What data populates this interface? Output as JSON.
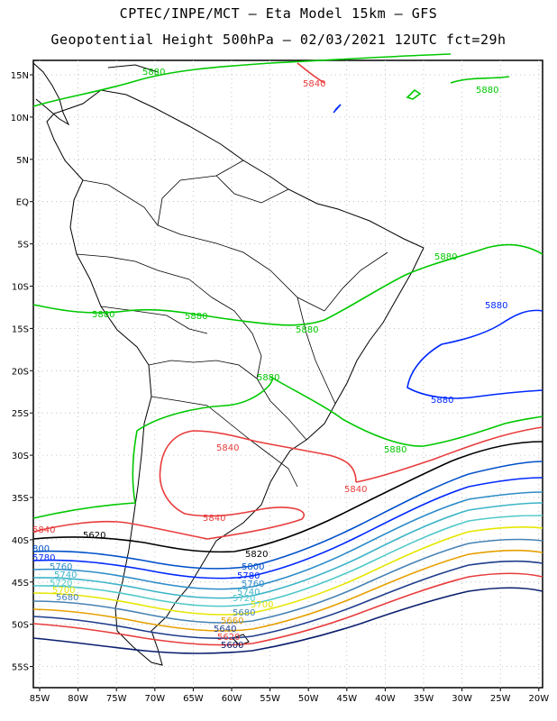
{
  "header": {
    "line1": "CPTEC/INPE/MCT –  Eta Model 15km – GFS",
    "line2": "Geopotential Height 500hPa – 02/03/2021 12UTC fct=29h"
  },
  "axes": {
    "lat_labels": [
      "15N",
      "10N",
      "5N",
      "EQ",
      "5S",
      "10S",
      "15S",
      "20S",
      "25S",
      "30S",
      "35S",
      "40S",
      "45S",
      "50S",
      "55S"
    ],
    "lon_labels": [
      "85W",
      "80W",
      "75W",
      "70W",
      "65W",
      "60W",
      "55W",
      "50W",
      "45W",
      "40W",
      "35W",
      "30W",
      "25W",
      "20W"
    ]
  },
  "contour_labels": [
    {
      "text": "5880",
      "color": "#00c800"
    },
    {
      "text": "5840",
      "color": "#e83c3c"
    },
    {
      "text": "5880",
      "color": "#00c800"
    },
    {
      "text": "5880",
      "color": "#00c800"
    },
    {
      "text": "5880",
      "color": "#00c800"
    },
    {
      "text": "5880",
      "color": "#00c800"
    },
    {
      "text": "5880",
      "color": "#00c800"
    },
    {
      "text": "5880",
      "color": "#0028ff"
    },
    {
      "text": "5880",
      "color": "#0028ff"
    },
    {
      "text": "5880",
      "color": "#00c800"
    },
    {
      "text": "5880",
      "color": "#00c800"
    },
    {
      "text": "5840",
      "color": "#e83c3c"
    },
    {
      "text": "5840",
      "color": "#e83c3c"
    },
    {
      "text": "5840",
      "color": "#e83c3c"
    },
    {
      "text": "5840",
      "color": "#e83c3c"
    },
    {
      "text": "5620",
      "color": "#000000"
    },
    {
      "text": "5820",
      "color": "#000000"
    },
    {
      "text": "800",
      "color": "#0050c8"
    },
    {
      "text": "5780",
      "color": "#0028ff"
    },
    {
      "text": "5760",
      "color": "#2d8cc8"
    },
    {
      "text": "5740",
      "color": "#3cb4c8"
    },
    {
      "text": "5720",
      "color": "#50c8c8"
    },
    {
      "text": "5700",
      "color": "#e6e600"
    },
    {
      "text": "5680",
      "color": "#4682b4"
    },
    {
      "text": "5800",
      "color": "#0050c8"
    },
    {
      "text": "5780",
      "color": "#0028ff"
    },
    {
      "text": "5760",
      "color": "#2d8cc8"
    },
    {
      "text": "5740",
      "color": "#3cb4c8"
    },
    {
      "text": "5720",
      "color": "#50c8c8"
    },
    {
      "text": "5700",
      "color": "#e6e600"
    },
    {
      "text": "5680",
      "color": "#4682b4"
    },
    {
      "text": "5660",
      "color": "#e6a000"
    },
    {
      "text": "5640",
      "color": "#1e3c8c"
    },
    {
      "text": "5620",
      "color": "#e83c3c"
    },
    {
      "text": "5600",
      "color": "#0a1e6e"
    }
  ]
}
